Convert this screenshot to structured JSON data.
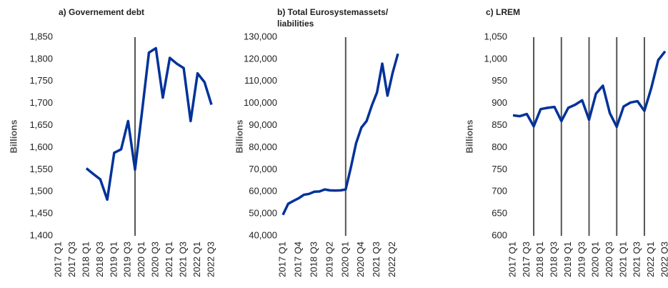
{
  "chart_data": [
    {
      "type": "line",
      "title": [
        "a) Governement debt"
      ],
      "y_label": "Billions",
      "categories": [
        "2017 Q1",
        null,
        "2017 Q3",
        null,
        "2018 Q1",
        null,
        "2018 Q3",
        null,
        "2019 Q1",
        null,
        "2019 Q3",
        null,
        "2020 Q1",
        null,
        "2020 Q3",
        null,
        "2021 Q1",
        null,
        "2021 Q3",
        null,
        "2022 Q1",
        null,
        "2022 Q3"
      ],
      "series": [
        {
          "name": "Governement debt",
          "color": "#003299",
          "values": [
            null,
            null,
            null,
            null,
            1553,
            1540,
            1528,
            1482,
            1588,
            1596,
            1660,
            1550,
            1680,
            1815,
            1825,
            1713,
            1803,
            1790,
            1780,
            1660,
            1768,
            1748,
            1697
          ]
        }
      ],
      "markers": [
        11
      ],
      "ylim": [
        1400,
        1850
      ],
      "yticks": [
        {
          "value": 1400,
          "label": "1,400"
        },
        {
          "value": 1450,
          "label": "1,450"
        },
        {
          "value": 1500,
          "label": "1,500"
        },
        {
          "value": 1550,
          "label": "1,550"
        },
        {
          "value": 1600,
          "label": "1,600"
        },
        {
          "value": 1650,
          "label": "1,650"
        },
        {
          "value": 1700,
          "label": "1,700"
        },
        {
          "value": 1750,
          "label": "1,750"
        },
        {
          "value": 1800,
          "label": "1,800"
        },
        {
          "value": 1850,
          "label": "1,850"
        }
      ]
    },
    {
      "type": "line",
      "title": [
        "b) Total  Eurosystemassets/",
        "liabilities"
      ],
      "y_label": "Billions",
      "categories": [
        "2017 Q1",
        null,
        null,
        "2017 Q4",
        null,
        null,
        "2018 Q3",
        null,
        null,
        "2019 Q2",
        null,
        null,
        "2020 Q1",
        null,
        null,
        "2020 Q4",
        null,
        null,
        "2021 Q3",
        null,
        null,
        "2022 Q2",
        null
      ],
      "series": [
        {
          "name": "Total Eurosystem assets/liabilities",
          "color": "#003299",
          "values": [
            49500,
            54500,
            55800,
            57000,
            58600,
            59000,
            60000,
            60100,
            61000,
            60600,
            60500,
            60600,
            61000,
            71000,
            82000,
            89000,
            92000,
            99000,
            105000,
            118000,
            103500,
            114000,
            122500
          ]
        }
      ],
      "markers": [
        12
      ],
      "ylim": [
        40000,
        130000
      ],
      "yticks": [
        {
          "value": 40000,
          "label": "40,000"
        },
        {
          "value": 50000,
          "label": "50,000"
        },
        {
          "value": 60000,
          "label": "60,000"
        },
        {
          "value": 70000,
          "label": "70,000"
        },
        {
          "value": 80000,
          "label": "80,000"
        },
        {
          "value": 90000,
          "label": "90,000"
        },
        {
          "value": 100000,
          "label": "100,000"
        },
        {
          "value": 110000,
          "label": "110,000"
        },
        {
          "value": 120000,
          "label": "120,000"
        },
        {
          "value": 130000,
          "label": "130,000"
        }
      ]
    },
    {
      "type": "line",
      "title": [
        "c) LREM"
      ],
      "y_label": "Billions",
      "categories": [
        "2017 Q1",
        null,
        "2017 Q3",
        null,
        "2018 Q1",
        null,
        "2018 Q3",
        null,
        "2019 Q1",
        null,
        "2019 Q3",
        null,
        "2020 Q1",
        null,
        "2020 Q3",
        null,
        "2021 Q1",
        null,
        "2021 Q3",
        null,
        "2022 Q1",
        null,
        "2022 Q3"
      ],
      "series": [
        {
          "name": "LREM",
          "color": "#003299",
          "values": [
            873,
            871,
            876,
            848,
            887,
            890,
            892,
            860,
            890,
            897,
            907,
            863,
            922,
            940,
            878,
            847,
            893,
            902,
            905,
            883,
            935,
            998,
            1018
          ]
        }
      ],
      "markers": [
        3,
        7,
        11,
        15,
        19
      ],
      "ylim": [
        600,
        1050
      ],
      "yticks": [
        600,
        650,
        700,
        750,
        800,
        850,
        900,
        950,
        {
          "value": 1000,
          "label": "1,000"
        },
        {
          "value": 1050,
          "label": "1,050"
        }
      ]
    }
  ]
}
